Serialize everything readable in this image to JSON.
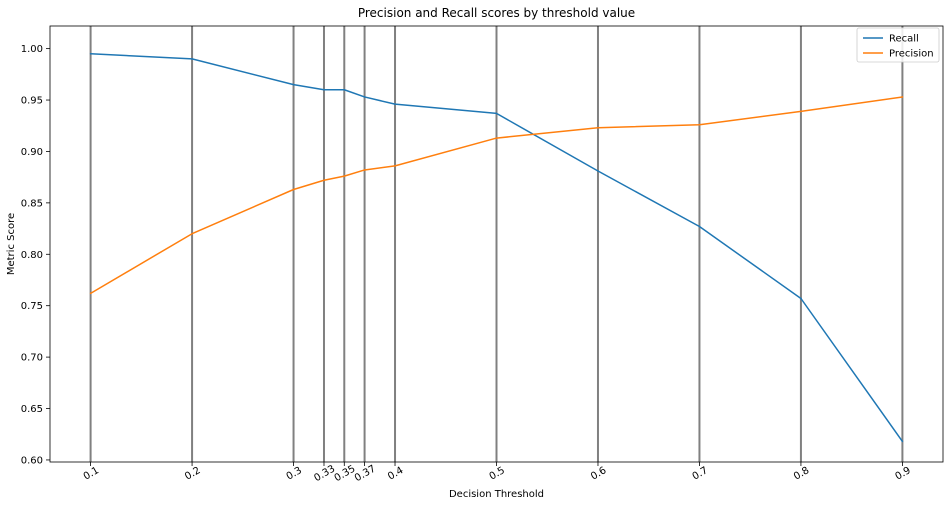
{
  "chart_data": {
    "type": "line",
    "title": "Precision and Recall scores by threshold value",
    "xlabel": "Decision Threshold",
    "ylabel": "Metric Score",
    "x": [
      0.1,
      0.2,
      0.3,
      0.33,
      0.35,
      0.37,
      0.4,
      0.5,
      0.6,
      0.7,
      0.8,
      0.9
    ],
    "xtick_labels": [
      "0.1",
      "0.2",
      "0.3",
      "0.33",
      "0.35",
      "0.37",
      "0.4",
      "0.5",
      "0.6",
      "0.7",
      "0.8",
      "0.9"
    ],
    "xlim": [
      0.06,
      0.94
    ],
    "ylim": [
      0.598,
      1.022
    ],
    "yticks": [
      0.6,
      0.65,
      0.7,
      0.75,
      0.8,
      0.85,
      0.9,
      0.95,
      1.0
    ],
    "ytick_labels": [
      "0.60",
      "0.65",
      "0.70",
      "0.75",
      "0.80",
      "0.85",
      "0.90",
      "0.95",
      "1.00"
    ],
    "vertical_lines_at": [
      0.1,
      0.2,
      0.3,
      0.33,
      0.35,
      0.37,
      0.4,
      0.5,
      0.6,
      0.7,
      0.8,
      0.9
    ],
    "series": [
      {
        "name": "Recall",
        "color": "#1f77b4",
        "values": [
          0.995,
          0.99,
          0.965,
          0.96,
          0.96,
          0.953,
          0.946,
          0.937,
          0.881,
          0.827,
          0.757,
          0.618
        ]
      },
      {
        "name": "Precision",
        "color": "#ff7f0e",
        "values": [
          0.762,
          0.82,
          0.863,
          0.872,
          0.876,
          0.882,
          0.886,
          0.913,
          0.923,
          0.926,
          0.939,
          0.953
        ]
      }
    ],
    "legend_position": "top-right",
    "grid": false,
    "vline_color": "#808080"
  }
}
